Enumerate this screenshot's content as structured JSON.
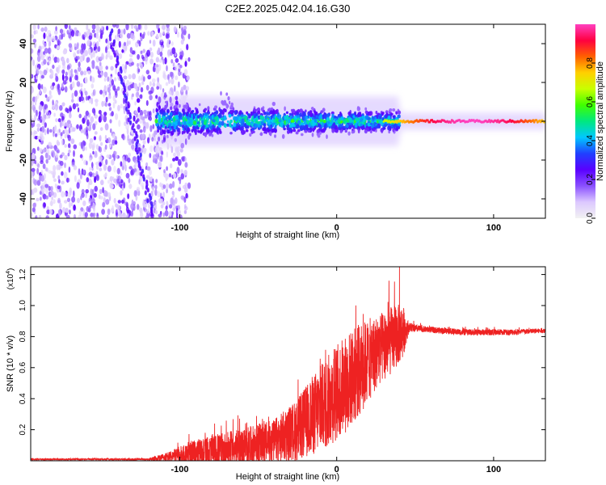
{
  "title": "C2E2.2025.042.04.16.G30",
  "colors": {
    "snr_line": "#ee2222",
    "accent_purple": "#6a00ff"
  },
  "chart_data": [
    {
      "type": "heatmap",
      "name": "spectrogram",
      "xlabel": "Height of straight line (km)",
      "ylabel": "Frequency (Hz)",
      "xlim": [
        -195,
        133
      ],
      "ylim": [
        -50,
        50
      ],
      "x_ticks": [
        -100,
        0,
        100
      ],
      "y_ticks": [
        -40,
        -20,
        0,
        20,
        40
      ],
      "regions": [
        {
          "x_from": -195,
          "x_to": -102,
          "kind": "broadband noise",
          "amplitude_range": [
            0.05,
            0.25
          ]
        },
        {
          "x_from": -115,
          "x_to": 40,
          "kind": "signal band",
          "center_hz": 0,
          "half_width_hz": 8,
          "amplitude_range": [
            0.15,
            0.6
          ]
        },
        {
          "x_from": 40,
          "x_to": 133,
          "kind": "narrow carrier",
          "center_hz": 0,
          "half_width_hz": 2,
          "amplitude_range": [
            0.5,
            1.0
          ]
        }
      ],
      "colorbar": {
        "label": "Normalized spectral amplitude",
        "range": [
          0,
          1
        ],
        "ticks": [
          "0.0",
          "0.2",
          "0.4",
          "0.6",
          "0.8"
        ],
        "tick_values": [
          0.0,
          0.2,
          0.4,
          0.6,
          0.8
        ],
        "colormap": [
          "#f2f2f2",
          "#dcc8ff",
          "#8a50ff",
          "#5a00ff",
          "#2040ff",
          "#00c8ff",
          "#00e880",
          "#40ff00",
          "#c8ff00",
          "#ffd000",
          "#ff6000",
          "#ff0040",
          "#ff40c0"
        ]
      }
    },
    {
      "type": "line",
      "name": "snr",
      "xlabel": "Height of straight line (km)",
      "ylabel": "SNR (10 * v/v)",
      "y_multiplier": "(x10",
      "y_multiplier_exp": "4",
      "y_multiplier_close": ")",
      "xlim": [
        -195,
        133
      ],
      "ylim": [
        0,
        1.25
      ],
      "x_ticks": [
        -100,
        0,
        100
      ],
      "y_ticks": [
        "0.2",
        "0.4",
        "0.6",
        "0.8",
        "1.0",
        "1.2"
      ],
      "y_tick_values": [
        0.2,
        0.4,
        0.6,
        0.8,
        1.0,
        1.2
      ],
      "series": [
        {
          "name": "SNR",
          "envelope": {
            "x": [
              -195,
              -120,
              -105,
              -95,
              -80,
              -60,
              -40,
              -25,
              -15,
              -5,
              5,
              15,
              25,
              35,
              42,
              46,
              55,
              80,
              110,
              133
            ],
            "base": [
              0.01,
              0.01,
              0.03,
              0.05,
              0.07,
              0.1,
              0.14,
              0.22,
              0.32,
              0.42,
              0.52,
              0.62,
              0.72,
              0.8,
              0.85,
              0.86,
              0.85,
              0.83,
              0.83,
              0.84
            ],
            "noise": [
              0.005,
              0.006,
              0.04,
              0.08,
              0.1,
              0.12,
              0.14,
              0.2,
              0.26,
              0.3,
              0.32,
              0.3,
              0.24,
              0.22,
              0.18,
              0.03,
              0.02,
              0.02,
              0.02,
              0.015
            ]
          },
          "peak": {
            "x": 40,
            "y": 1.25
          }
        }
      ]
    }
  ]
}
